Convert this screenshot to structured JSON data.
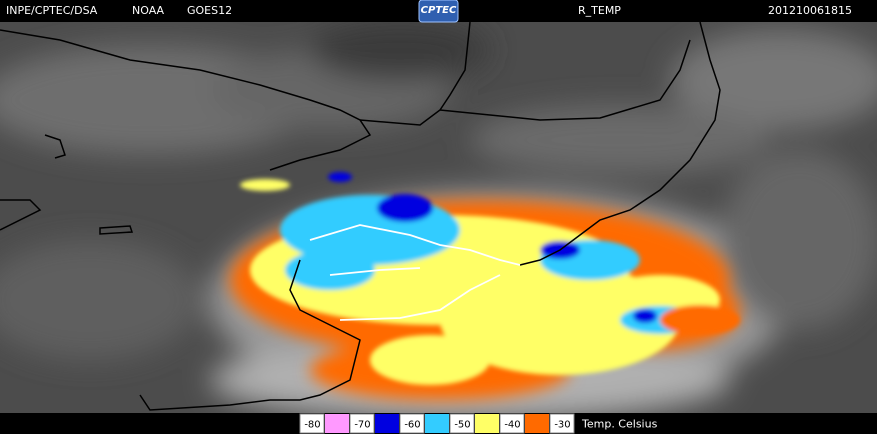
{
  "header": {
    "source": "INPE/CPTEC/DSA",
    "agency": "NOAA",
    "satellite": "GOES12",
    "logo": "CPTEC",
    "product": "R_TEMP",
    "timestamp": "201210061815"
  },
  "legend": {
    "labels": [
      -80,
      -70,
      -60,
      -50,
      -40,
      -30
    ],
    "colors": [
      "#ff99ff",
      "#0000e0",
      "#33ccff",
      "#ffff66",
      "#ff6a00"
    ],
    "unit": "Temp. Celsius"
  }
}
